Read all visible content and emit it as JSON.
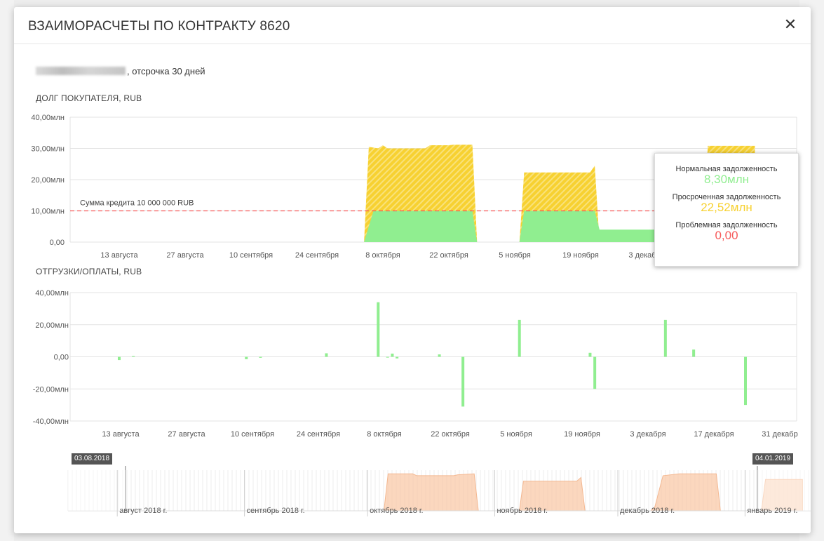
{
  "modal": {
    "title": "ВЗАИМОРАСЧЕТЫ ПО КОНТРАКТУ 8620",
    "close_icon": "close-icon",
    "subtitle": ", отсрочка 30 дней"
  },
  "debt_section": {
    "title": "ДОЛГ ПОКУПАТЕЛЯ, RUB"
  },
  "flows_section": {
    "title": "ОТГРУЗКИ/ОПЛАТЫ, RUB"
  },
  "tooltip": {
    "normal_label": "Нормальная задолженность",
    "normal_value": "8,30млн",
    "overdue_label": "Просроченная задолженность",
    "overdue_value": "22,52млн",
    "problem_label": "Проблемная задолженность",
    "problem_value": "0,00"
  },
  "colors": {
    "normal": "#90ee90",
    "overdue": "#f7d131",
    "problem": "#f65a5a",
    "credit_line": "#f65a5a",
    "navigator": "#f9c9a8"
  },
  "chart_data": [
    {
      "type": "area",
      "title": "ДОЛГ ПОКУПАТЕЛЯ, RUB",
      "x_axis": "date",
      "x_range": [
        "2018-08-03",
        "2018-12-26"
      ],
      "ylim": [
        0,
        40
      ],
      "y_unit": "млн",
      "y_ticks": [
        "0,00",
        "10,00млн",
        "20,00млн",
        "30,00млн",
        "40,00млн"
      ],
      "x_ticks": [
        "13 августа",
        "27 августа",
        "10 сентября",
        "24 сентября",
        "8 октября",
        "22 октября",
        "5 ноября",
        "19 ноября",
        "3 декабря"
      ],
      "credit_line": {
        "value": 10,
        "label": "Сумма кредита 10 000 000 RUB"
      },
      "series": [
        {
          "name": "Нормальная задолженность",
          "color": "#90ee90",
          "points": [
            [
              "2018-10-04",
              0
            ],
            [
              "2018-10-06",
              10
            ],
            [
              "2018-10-27",
              10
            ],
            [
              "2018-10-28",
              0
            ],
            [
              "2018-11-06",
              0
            ],
            [
              "2018-11-07",
              10
            ],
            [
              "2018-11-22",
              10
            ],
            [
              "2018-11-23",
              4
            ],
            [
              "2018-12-09",
              4
            ],
            [
              "2018-12-18",
              4
            ],
            [
              "2018-12-19",
              8.3
            ],
            [
              "2018-12-26",
              8.3
            ]
          ]
        },
        {
          "name": "Просроченная задолженность",
          "color": "#f7d131",
          "points": [
            [
              "2018-10-04",
              0
            ],
            [
              "2018-10-05",
              30.5
            ],
            [
              "2018-10-07",
              30
            ],
            [
              "2018-10-08",
              31
            ],
            [
              "2018-10-09",
              30
            ],
            [
              "2018-10-17",
              30
            ],
            [
              "2018-10-18",
              31
            ],
            [
              "2018-10-22",
              31
            ],
            [
              "2018-10-23",
              31.2
            ],
            [
              "2018-10-27",
              31.2
            ],
            [
              "2018-10-28",
              0
            ],
            [
              "2018-11-06",
              0
            ],
            [
              "2018-11-07",
              22.3
            ],
            [
              "2018-11-21",
              22.3
            ],
            [
              "2018-11-22",
              24.5
            ],
            [
              "2018-11-23",
              0
            ],
            [
              "2018-12-15",
              0
            ],
            [
              "2018-12-16",
              30.8
            ],
            [
              "2018-12-26",
              30.8
            ]
          ]
        },
        {
          "name": "Проблемная задолженность",
          "color": "#f65a5a",
          "points": []
        }
      ]
    },
    {
      "type": "bar",
      "title": "ОТГРУЗКИ/ОПЛАТЫ, RUB",
      "x_axis": "date",
      "x_range": [
        "2018-08-03",
        "2019-01-01"
      ],
      "ylim": [
        -40,
        40
      ],
      "y_unit": "млн",
      "y_ticks": [
        "-40,00млн",
        "-20,00млн",
        "0,00",
        "20,00млн",
        "40,00млн"
      ],
      "x_ticks": [
        "13 августа",
        "27 августа",
        "10 сентября",
        "24 сентября",
        "8 октября",
        "22 октября",
        "5 ноября",
        "19 ноября",
        "3 декабря",
        "17 декабря",
        "31 декабр"
      ],
      "color": "#90ee90",
      "bars": [
        [
          "2018-08-13",
          -2
        ],
        [
          "2018-08-16",
          0.5
        ],
        [
          "2018-09-09",
          -1.5
        ],
        [
          "2018-09-12",
          -0.6
        ],
        [
          "2018-09-26",
          2.2
        ],
        [
          "2018-10-07",
          34
        ],
        [
          "2018-10-09",
          -0.5
        ],
        [
          "2018-10-10",
          2
        ],
        [
          "2018-10-11",
          -1
        ],
        [
          "2018-10-20",
          1.5
        ],
        [
          "2018-10-25",
          -31
        ],
        [
          "2018-11-06",
          23
        ],
        [
          "2018-11-21",
          2.5
        ],
        [
          "2018-11-22",
          -20
        ],
        [
          "2018-12-07",
          23
        ],
        [
          "2018-12-13",
          4.5
        ],
        [
          "2018-12-24",
          -30
        ]
      ]
    }
  ],
  "navigator": {
    "start_flag": "03.08.2018",
    "end_flag": "04.01.2019",
    "month_labels": [
      "август 2018 г.",
      "сентябрь 2018 г.",
      "октябрь 2018 г.",
      "ноябрь 2018 г.",
      "декабрь 2018 г.",
      "январь 2019 г."
    ],
    "series_points": [
      [
        "2018-10-05",
        0
      ],
      [
        "2018-10-06",
        40
      ],
      [
        "2018-10-12",
        40
      ],
      [
        "2018-10-13",
        38
      ],
      [
        "2018-10-22",
        38
      ],
      [
        "2018-10-23",
        39
      ],
      [
        "2018-10-27",
        40
      ],
      [
        "2018-10-28",
        0
      ],
      [
        "2018-11-07",
        0
      ],
      [
        "2018-11-08",
        32
      ],
      [
        "2018-11-21",
        32
      ],
      [
        "2018-11-22",
        36
      ],
      [
        "2018-11-23",
        0
      ],
      [
        "2018-12-09",
        0
      ],
      [
        "2018-12-10",
        4
      ],
      [
        "2018-12-12",
        38
      ],
      [
        "2018-12-16",
        40
      ],
      [
        "2018-12-25",
        40
      ],
      [
        "2018-12-26",
        0
      ],
      [
        "2019-01-05",
        0
      ],
      [
        "2019-01-06",
        34
      ],
      [
        "2019-01-15",
        34
      ]
    ]
  }
}
